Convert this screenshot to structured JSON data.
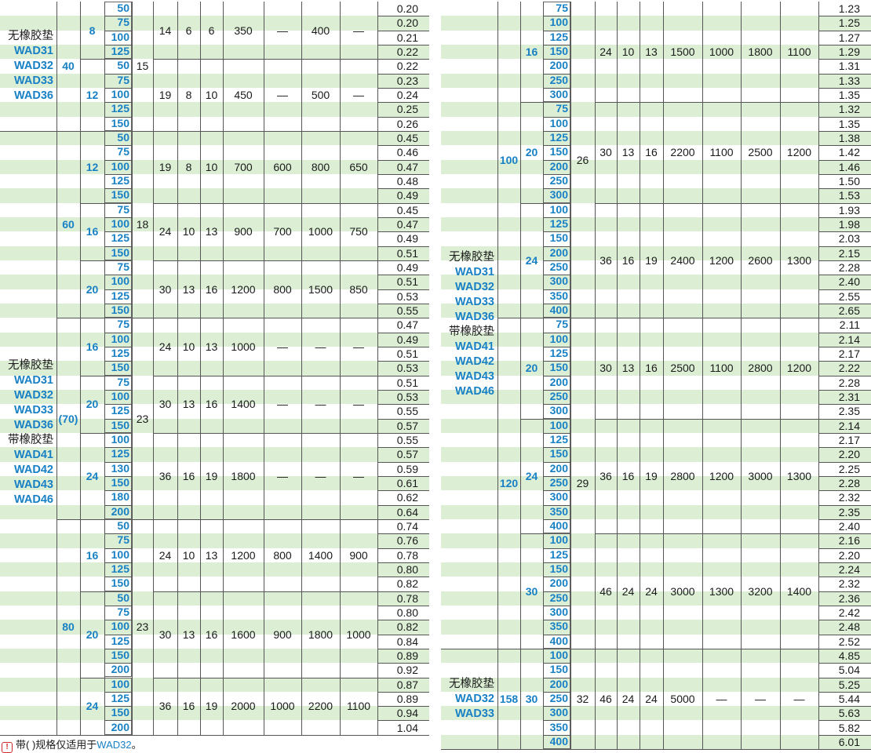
{
  "left_table": {
    "groups": [
      {
        "labels": [
          "无橡胶垫",
          "WAD31",
          "WAD32",
          "WAD33",
          "WAD36"
        ],
        "sub_groups": [
          {
            "d": "40",
            "h": "15",
            "sections": [
              {
                "t": "8",
                "a": "14",
                "b": "6",
                "c": "6",
                "f1": "350",
                "f2": "—",
                "f3": "400",
                "f4": "—",
                "lengths": [
                  "50",
                  "75",
                  "100",
                  "125"
                ],
                "weights": [
                  "0.20",
                  "0.20",
                  "0.21",
                  "0.22"
                ]
              },
              {
                "t": "12",
                "a": "19",
                "b": "8",
                "c": "10",
                "f1": "450",
                "f2": "—",
                "f3": "500",
                "f4": "—",
                "lengths": [
                  "50",
                  "75",
                  "100",
                  "125",
                  "150"
                ],
                "weights": [
                  "0.22",
                  "0.23",
                  "0.24",
                  "0.25",
                  "0.26"
                ]
              }
            ]
          }
        ]
      },
      {
        "labels": [
          "无橡胶垫",
          "WAD31",
          "WAD32",
          "WAD33",
          "WAD36",
          "带橡胶垫",
          "WAD41",
          "WAD42",
          "WAD43",
          "WAD46"
        ],
        "sub_groups": [
          {
            "d": "60",
            "h": "18",
            "sections": [
              {
                "t": "12",
                "a": "19",
                "b": "8",
                "c": "10",
                "f1": "700",
                "f2": "600",
                "f3": "800",
                "f4": "650",
                "lengths": [
                  "50",
                  "75",
                  "100",
                  "125",
                  "150"
                ],
                "weights": [
                  "0.45",
                  "0.46",
                  "0.47",
                  "0.48",
                  "0.49"
                ]
              },
              {
                "t": "16",
                "a": "24",
                "b": "10",
                "c": "13",
                "f1": "900",
                "f2": "700",
                "f3": "1000",
                "f4": "750",
                "lengths": [
                  "75",
                  "100",
                  "125",
                  "150"
                ],
                "weights": [
                  "0.45",
                  "0.47",
                  "0.49",
                  "0.51"
                ]
              },
              {
                "t": "20",
                "a": "30",
                "b": "13",
                "c": "16",
                "f1": "1200",
                "f2": "800",
                "f3": "1500",
                "f4": "850",
                "lengths": [
                  "75",
                  "100",
                  "125",
                  "150"
                ],
                "weights": [
                  "0.49",
                  "0.51",
                  "0.53",
                  "0.55"
                ]
              }
            ]
          },
          {
            "d": "(70)",
            "h": "23",
            "sections": [
              {
                "t": "16",
                "a": "24",
                "b": "10",
                "c": "13",
                "f1": "1000",
                "f2": "—",
                "f3": "—",
                "f4": "—",
                "lengths": [
                  "75",
                  "100",
                  "125",
                  "150"
                ],
                "weights": [
                  "0.47",
                  "0.49",
                  "0.51",
                  "0.53"
                ]
              },
              {
                "t": "20",
                "a": "30",
                "b": "13",
                "c": "16",
                "f1": "1400",
                "f2": "—",
                "f3": "—",
                "f4": "—",
                "lengths": [
                  "75",
                  "100",
                  "125",
                  "150"
                ],
                "weights": [
                  "0.51",
                  "0.53",
                  "0.55",
                  "0.57"
                ]
              },
              {
                "t": "24",
                "a": "36",
                "b": "16",
                "c": "19",
                "f1": "1800",
                "f2": "—",
                "f3": "—",
                "f4": "—",
                "lengths": [
                  "100",
                  "125",
                  "130",
                  "150",
                  "180",
                  "200"
                ],
                "weights": [
                  "0.55",
                  "0.57",
                  "0.59",
                  "0.61",
                  "0.62",
                  "0.64"
                ]
              }
            ]
          },
          {
            "d": "80",
            "h": "23",
            "sections": [
              {
                "t": "16",
                "a": "24",
                "b": "10",
                "c": "13",
                "f1": "1200",
                "f2": "800",
                "f3": "1400",
                "f4": "900",
                "lengths": [
                  "50",
                  "75",
                  "100",
                  "125",
                  "150"
                ],
                "weights": [
                  "0.74",
                  "0.76",
                  "0.78",
                  "0.80",
                  "0.82"
                ]
              },
              {
                "t": "20",
                "a": "30",
                "b": "13",
                "c": "16",
                "f1": "1600",
                "f2": "900",
                "f3": "1800",
                "f4": "1000",
                "lengths": [
                  "50",
                  "75",
                  "100",
                  "125",
                  "150",
                  "200"
                ],
                "weights": [
                  "0.78",
                  "0.80",
                  "0.82",
                  "0.84",
                  "0.89",
                  "0.92"
                ]
              },
              {
                "t": "24",
                "a": "36",
                "b": "16",
                "c": "19",
                "f1": "2000",
                "f2": "1000",
                "f3": "2200",
                "f4": "1100",
                "lengths": [
                  "100",
                  "125",
                  "150",
                  "200"
                ],
                "weights": [
                  "0.87",
                  "0.89",
                  "0.94",
                  "1.04"
                ]
              }
            ]
          }
        ]
      }
    ]
  },
  "right_table": {
    "groups": [
      {
        "labels": [
          "无橡胶垫",
          "WAD31",
          "WAD32",
          "WAD33",
          "WAD36",
          "带橡胶垫",
          "WAD41",
          "WAD42",
          "WAD43",
          "WAD46"
        ],
        "sub_groups": [
          {
            "d": "100",
            "h": "26",
            "sections": [
              {
                "t": "16",
                "a": "24",
                "b": "10",
                "c": "13",
                "f1": "1500",
                "f2": "1000",
                "f3": "1800",
                "f4": "1100",
                "lengths": [
                  "75",
                  "100",
                  "125",
                  "150",
                  "200",
                  "250",
                  "300"
                ],
                "weights": [
                  "1.23",
                  "1.25",
                  "1.27",
                  "1.29",
                  "1.31",
                  "1.33",
                  "1.35"
                ]
              },
              {
                "t": "20",
                "a": "30",
                "b": "13",
                "c": "16",
                "f1": "2200",
                "f2": "1100",
                "f3": "2500",
                "f4": "1200",
                "lengths": [
                  "75",
                  "100",
                  "125",
                  "150",
                  "200",
                  "250",
                  "300"
                ],
                "weights": [
                  "1.32",
                  "1.35",
                  "1.38",
                  "1.42",
                  "1.46",
                  "1.50",
                  "1.53"
                ]
              },
              {
                "t": "24",
                "a": "36",
                "b": "16",
                "c": "19",
                "f1": "2400",
                "f2": "1200",
                "f3": "2600",
                "f4": "1300",
                "lengths": [
                  "100",
                  "125",
                  "150",
                  "200",
                  "250",
                  "300",
                  "350",
                  "400"
                ],
                "weights": [
                  "1.93",
                  "1.98",
                  "2.03",
                  "2.15",
                  "2.28",
                  "2.40",
                  "2.55",
                  "2.65"
                ]
              }
            ]
          },
          {
            "d": "120",
            "h": "29",
            "sections": [
              {
                "t": "20",
                "a": "30",
                "b": "13",
                "c": "16",
                "f1": "2500",
                "f2": "1100",
                "f3": "2800",
                "f4": "1200",
                "lengths": [
                  "75",
                  "100",
                  "125",
                  "150",
                  "200",
                  "250",
                  "300"
                ],
                "weights": [
                  "2.11",
                  "2.14",
                  "2.17",
                  "2.22",
                  "2.28",
                  "2.31",
                  "2.35"
                ]
              },
              {
                "t": "24",
                "a": "36",
                "b": "16",
                "c": "19",
                "f1": "2800",
                "f2": "1200",
                "f3": "3000",
                "f4": "1300",
                "lengths": [
                  "100",
                  "125",
                  "150",
                  "200",
                  "250",
                  "300",
                  "350",
                  "400"
                ],
                "weights": [
                  "2.14",
                  "2.17",
                  "2.20",
                  "2.25",
                  "2.28",
                  "2.32",
                  "2.35",
                  "2.40"
                ]
              },
              {
                "t": "30",
                "a": "46",
                "b": "24",
                "c": "24",
                "f1": "3000",
                "f2": "1300",
                "f3": "3200",
                "f4": "1400",
                "lengths": [
                  "100",
                  "125",
                  "150",
                  "200",
                  "250",
                  "300",
                  "350",
                  "400"
                ],
                "weights": [
                  "2.16",
                  "2.20",
                  "2.24",
                  "2.32",
                  "2.36",
                  "2.42",
                  "2.48",
                  "2.52"
                ]
              }
            ]
          }
        ]
      },
      {
        "labels": [
          "无橡胶垫",
          "WAD32",
          "WAD33"
        ],
        "sub_groups": [
          {
            "d": "158",
            "h": "32",
            "sections": [
              {
                "t": "30",
                "a": "46",
                "b": "24",
                "c": "24",
                "f1": "5000",
                "f2": "—",
                "f3": "—",
                "f4": "—",
                "lengths": [
                  "100",
                  "150",
                  "200",
                  "250",
                  "300",
                  "350",
                  "400"
                ],
                "weights": [
                  "4.85",
                  "5.04",
                  "5.25",
                  "5.44",
                  "5.63",
                  "5.82",
                  "6.01"
                ]
              }
            ]
          }
        ]
      }
    ]
  },
  "footnote": {
    "icon": "exclamation-icon",
    "text": "带( )规格仅适用于",
    "model": "WAD32",
    "end": "。"
  },
  "colors": {
    "accent": "#1880c4",
    "band": "#dcefd5",
    "rule": "#555555",
    "note_icon": "#d12c2c"
  }
}
